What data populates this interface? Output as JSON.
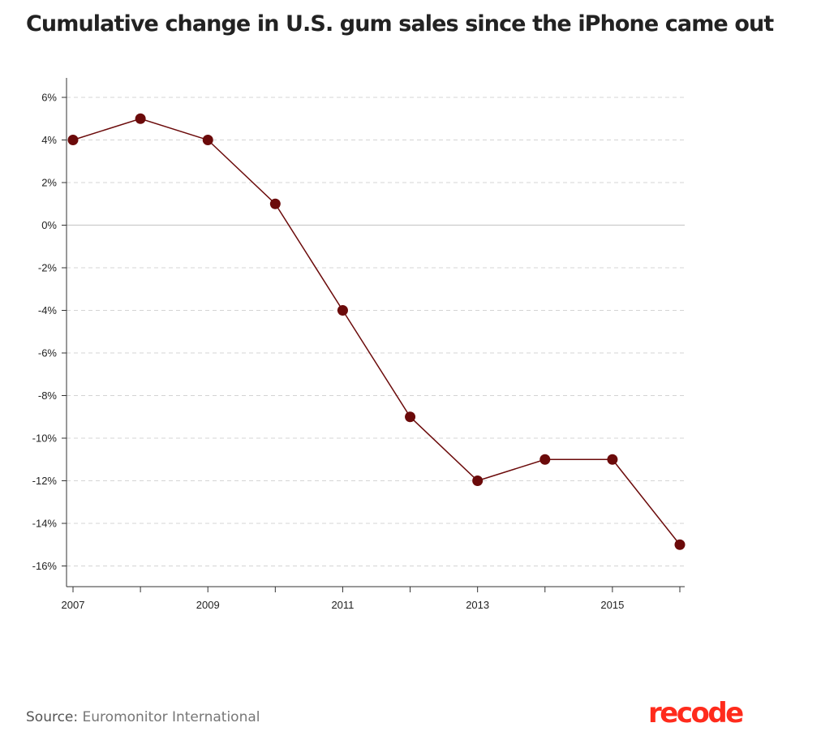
{
  "title": "Cumulative change in U.S. gum sales since the iPhone came out",
  "source": {
    "label": "Source:",
    "text": "Euromonitor International"
  },
  "brand": {
    "name": "recode",
    "color": "#ff2b1c"
  },
  "chart_data": {
    "type": "line",
    "title": "Cumulative change in U.S. gum sales since the iPhone came out",
    "xlabel": "",
    "ylabel": "",
    "x": [
      2007,
      2008,
      2009,
      2010,
      2011,
      2012,
      2013,
      2014,
      2015,
      2016
    ],
    "series": [
      {
        "values": [
          4,
          5,
          4,
          1,
          -4,
          -9,
          -12,
          -11,
          -11,
          -15
        ],
        "color": "#6b0a0a"
      }
    ],
    "xlim": [
      2007,
      2016
    ],
    "ylim": [
      -17,
      7
    ],
    "x_ticks": [
      2007,
      2008,
      2009,
      2010,
      2011,
      2012,
      2013,
      2014,
      2015,
      2016
    ],
    "x_tick_labels": [
      "2007",
      "",
      "2009",
      "",
      "2011",
      "",
      "2013",
      "",
      "2015",
      ""
    ],
    "y_ticks": [
      6,
      4,
      2,
      0,
      -2,
      -4,
      -6,
      -8,
      -10,
      -12,
      -14,
      -16
    ],
    "y_tick_labels": [
      "6%",
      "4%",
      "2%",
      "0%",
      "-2%",
      "-4%",
      "-6%",
      "-8%",
      "-10%",
      "-12%",
      "-14%",
      "-16%"
    ],
    "grid": true,
    "legend": "none"
  }
}
